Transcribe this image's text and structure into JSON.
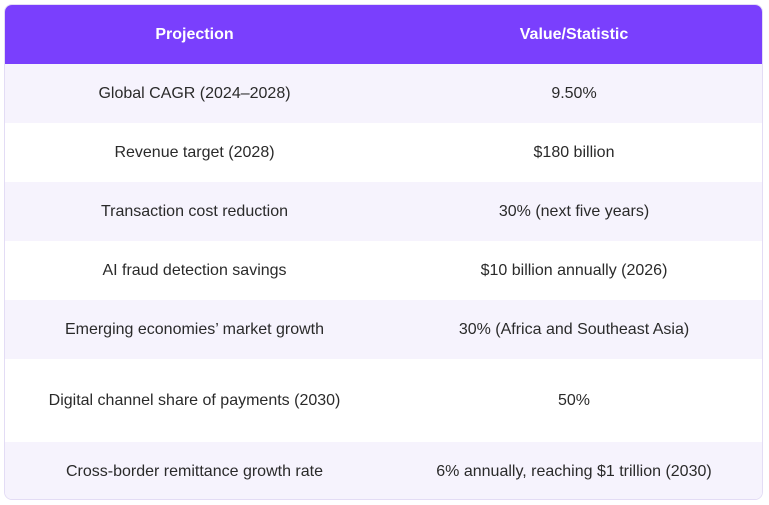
{
  "table": {
    "headers": [
      "Projection",
      "Value/Statistic"
    ],
    "rows": [
      [
        "Global CAGR (2024–2028)",
        "9.50%"
      ],
      [
        "Revenue target (2028)",
        "$180 billion"
      ],
      [
        "Transaction cost reduction",
        "30% (next five years)"
      ],
      [
        "AI fraud detection savings",
        "$10 billion annually (2026)"
      ],
      [
        "Emerging economies’ market growth",
        "30% (Africa and Southeast Asia)"
      ],
      [
        "Digital channel share of payments (2030)",
        "50%"
      ],
      [
        "Cross-border remittance growth rate",
        "6% annually, reaching $1 trillion (2030)"
      ]
    ]
  },
  "colors": {
    "header_bg": "#7a3ffd",
    "header_text": "#ffffff",
    "stripe_bg": "#f6f3fd",
    "border": "#e3dcf5"
  }
}
